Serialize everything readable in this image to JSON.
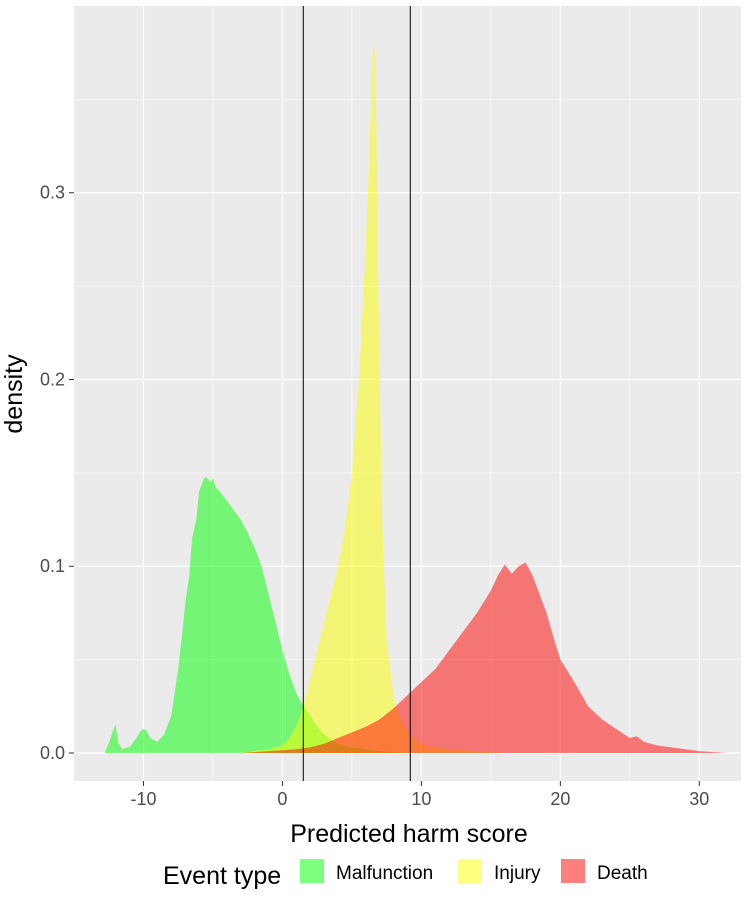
{
  "chart_data": {
    "type": "area",
    "xlabel": "Predicted harm score",
    "ylabel": "density",
    "xlim": [
      -15,
      33
    ],
    "ylim": [
      -0.015,
      0.4
    ],
    "xticks": [
      -10,
      0,
      10,
      20,
      30
    ],
    "yticks": [
      0.0,
      0.1,
      0.2,
      0.3
    ],
    "xtick_labels": [
      "-10",
      "0",
      "10",
      "20",
      "30"
    ],
    "ytick_labels": [
      "0.0",
      "0.1",
      "0.2",
      "0.3"
    ],
    "grid": true,
    "background": "#ebebeb",
    "vlines": [
      1.5,
      9.2
    ],
    "legend": {
      "title": "Event type",
      "position": "bottom",
      "entries": [
        "Malfunction",
        "Injury",
        "Death"
      ]
    },
    "series": [
      {
        "name": "Malfunction",
        "color": "#00ff00",
        "opacity": 0.5,
        "x": [
          -12.8,
          -12.5,
          -12.2,
          -12.0,
          -11.8,
          -11.5,
          -11.2,
          -11.0,
          -10.5,
          -10.2,
          -10.0,
          -9.8,
          -9.5,
          -9.0,
          -8.5,
          -8.0,
          -7.5,
          -7.2,
          -7.0,
          -6.7,
          -6.5,
          -6.2,
          -6.0,
          -5.7,
          -5.5,
          -5.2,
          -5.0,
          -4.8,
          -4.5,
          -4.2,
          -4.0,
          -3.5,
          -3.0,
          -2.5,
          -2.0,
          -1.5,
          -1.0,
          -0.5,
          0.0,
          0.5,
          1.0,
          1.5,
          2.0,
          2.5,
          3.0,
          3.5,
          4.0,
          5.0,
          6.0,
          7.0,
          8.0,
          9.0,
          10.0
        ],
        "y": [
          0.0,
          0.005,
          0.012,
          0.015,
          0.005,
          0.002,
          0.003,
          0.003,
          0.008,
          0.012,
          0.013,
          0.012,
          0.008,
          0.006,
          0.01,
          0.02,
          0.045,
          0.065,
          0.08,
          0.095,
          0.115,
          0.125,
          0.14,
          0.146,
          0.148,
          0.145,
          0.147,
          0.142,
          0.14,
          0.137,
          0.135,
          0.13,
          0.125,
          0.118,
          0.11,
          0.1,
          0.085,
          0.07,
          0.055,
          0.042,
          0.032,
          0.025,
          0.02,
          0.014,
          0.01,
          0.007,
          0.005,
          0.003,
          0.002,
          0.001,
          0.0005,
          0.0002,
          0.0
        ]
      },
      {
        "name": "Injury",
        "color": "#ffff00",
        "opacity": 0.5,
        "x": [
          -3.0,
          -2.0,
          -1.0,
          0.0,
          0.5,
          1.0,
          1.5,
          2.0,
          2.5,
          3.0,
          3.5,
          4.0,
          4.5,
          5.0,
          5.5,
          6.0,
          6.3,
          6.5,
          6.6,
          6.7,
          6.8,
          7.0,
          7.2,
          7.5,
          8.0,
          8.5,
          9.0,
          9.5,
          10.0,
          11.0,
          12.0,
          14.0,
          16.0
        ],
        "y": [
          0.0,
          0.001,
          0.002,
          0.004,
          0.008,
          0.014,
          0.025,
          0.04,
          0.055,
          0.07,
          0.085,
          0.1,
          0.12,
          0.15,
          0.2,
          0.27,
          0.33,
          0.375,
          0.38,
          0.37,
          0.3,
          0.2,
          0.12,
          0.06,
          0.03,
          0.018,
          0.012,
          0.008,
          0.005,
          0.003,
          0.002,
          0.001,
          0.0
        ]
      },
      {
        "name": "Death",
        "color": "#ff0000",
        "opacity": 0.5,
        "x": [
          -3.0,
          -2.0,
          -1.0,
          0.0,
          1.0,
          2.0,
          3.0,
          4.0,
          5.0,
          6.0,
          7.0,
          8.0,
          9.0,
          10.0,
          11.0,
          12.0,
          13.0,
          14.0,
          15.0,
          15.5,
          16.0,
          16.5,
          17.0,
          17.5,
          18.0,
          18.5,
          19.0,
          19.5,
          20.0,
          21.0,
          22.0,
          23.0,
          24.0,
          25.0,
          25.5,
          26.0,
          27.0,
          28.0,
          29.0,
          30.0,
          31.0,
          32.0
        ],
        "y": [
          0.0,
          0.0005,
          0.001,
          0.0015,
          0.002,
          0.003,
          0.005,
          0.008,
          0.011,
          0.014,
          0.018,
          0.024,
          0.031,
          0.038,
          0.045,
          0.055,
          0.065,
          0.075,
          0.087,
          0.095,
          0.101,
          0.096,
          0.1,
          0.102,
          0.095,
          0.085,
          0.075,
          0.062,
          0.05,
          0.038,
          0.025,
          0.018,
          0.013,
          0.008,
          0.009,
          0.006,
          0.004,
          0.003,
          0.002,
          0.001,
          0.0005,
          0.0
        ]
      }
    ]
  }
}
